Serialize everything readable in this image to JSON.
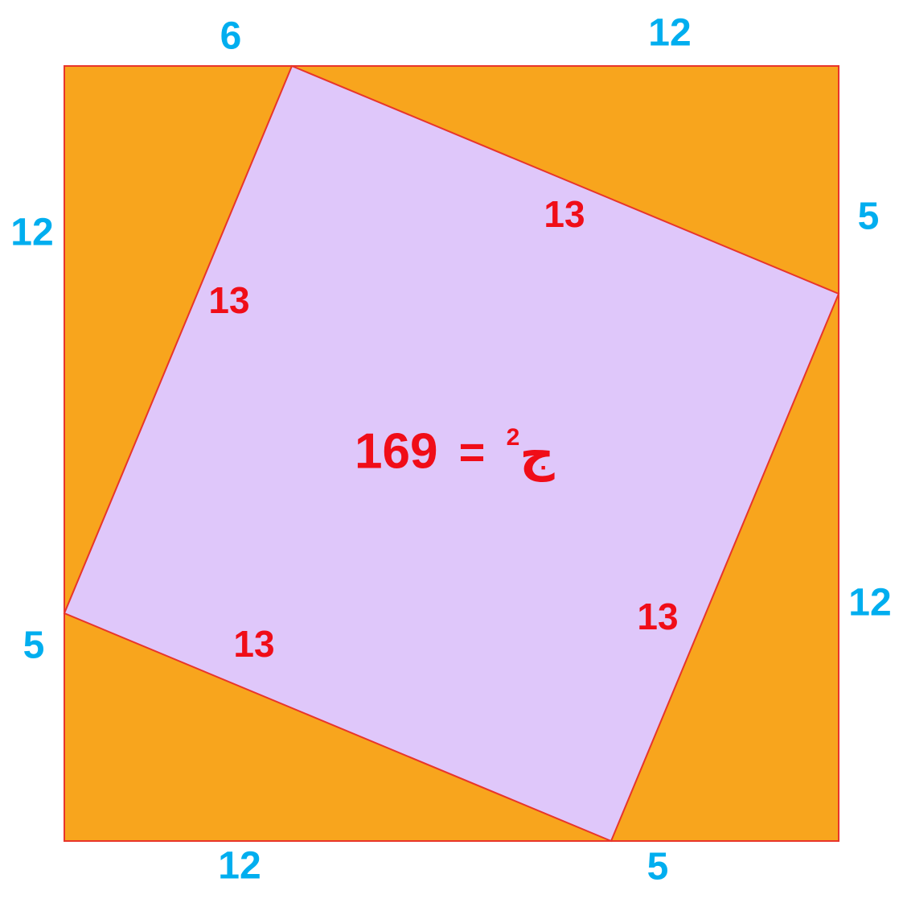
{
  "colors": {
    "outer_fill": "#F8A51D",
    "outer_stroke": "#E8352B",
    "inner_fill": "#DFC7FA",
    "inner_stroke": "#E8352B",
    "outer_label": "#00AEEF",
    "inner_label": "#F00D18"
  },
  "outer_labels": {
    "top_left": "6",
    "top_right": "12",
    "right_top": "5",
    "right_bottom": "12",
    "bottom_left": "12",
    "bottom_right": "5",
    "left_top": "12",
    "left_bottom": "5"
  },
  "inner_labels": {
    "top": "13",
    "left": "13",
    "right": "13",
    "bottom": "13"
  },
  "formula": {
    "value": "169",
    "equals": "=",
    "letter": "ج",
    "exponent": "2"
  }
}
